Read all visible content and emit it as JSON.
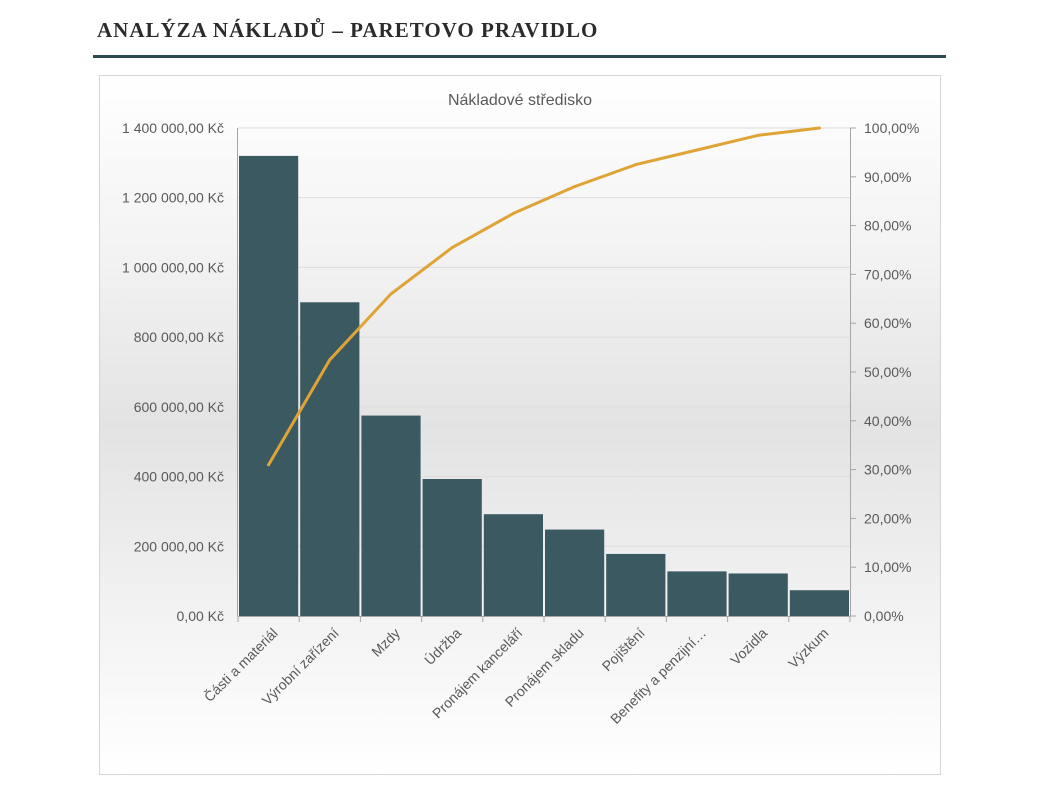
{
  "page": {
    "title": "ANALÝZA NÁKLADŮ – PARETOVO PRAVIDLO"
  },
  "chart_data": {
    "type": "bar",
    "title": "Nákladové středisko",
    "categories": [
      "Části a materiál",
      "Výrobní zařízení",
      "Mzdy",
      "Údržba",
      "Pronájem kanceláří",
      "Pronájem skladu",
      "Pojištění",
      "Benefity a penzijní…",
      "Vozidla",
      "Výzkum"
    ],
    "series": [
      {
        "kind": "bar",
        "axis": "left",
        "color": "#3b5960",
        "values": [
          1320000,
          900000,
          575000,
          393000,
          292000,
          248000,
          178000,
          128000,
          122000,
          74000
        ]
      },
      {
        "kind": "line",
        "axis": "right",
        "color": "#e0a336",
        "values": [
          31.0,
          52.5,
          66.0,
          75.5,
          82.5,
          88.0,
          92.5,
          95.5,
          98.5,
          100.0
        ]
      }
    ],
    "ylim_left": [
      0,
      1400000
    ],
    "yticks_left": [
      "0,00 Kč",
      "200 000,00 Kč",
      "400 000,00 Kč",
      "600 000,00 Kč",
      "800 000,00 Kč",
      "1 000 000,00 Kč",
      "1 200 000,00 Kč",
      "1 400 000,00 Kč"
    ],
    "ylim_right": [
      0,
      100
    ],
    "yticks_right": [
      "0,00%",
      "10,00%",
      "20,00%",
      "30,00%",
      "40,00%",
      "50,00%",
      "60,00%",
      "70,00%",
      "80,00%",
      "90,00%",
      "100,00%"
    ],
    "grid": true,
    "legend": "none"
  }
}
